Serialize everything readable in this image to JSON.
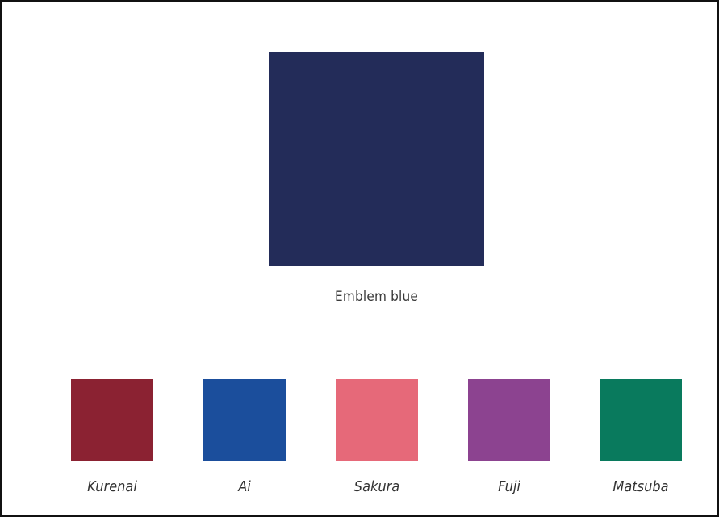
{
  "emblem": {
    "label": "Emblem blue",
    "color": "#232c59"
  },
  "palette": [
    {
      "label": "Kurenai",
      "color": "#8b2232"
    },
    {
      "label": "Ai",
      "color": "#1b4e9c"
    },
    {
      "label": "Sakura",
      "color": "#e66979"
    },
    {
      "label": "Fuji",
      "color": "#8c4390"
    },
    {
      "label": "Matsuba",
      "color": "#097a5d"
    }
  ]
}
